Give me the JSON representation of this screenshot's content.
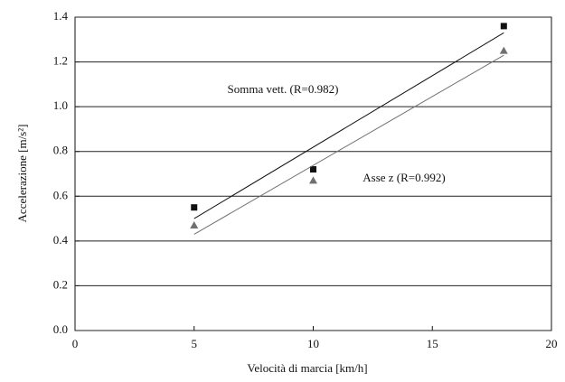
{
  "chart_data": {
    "type": "scatter",
    "xlabel": "Velocità di marcia [km/h]",
    "ylabel": "Accelerazione [m/s²]",
    "xlim": [
      0,
      20
    ],
    "xticks": [
      0,
      5,
      10,
      15,
      20
    ],
    "ylim": [
      0,
      1.4
    ],
    "yticks": [
      {
        "value": 0,
        "label": "0.0"
      },
      0.2,
      0.4,
      0.6,
      0.8,
      {
        "value": 1,
        "label": "1.0"
      },
      1.2,
      1.4
    ],
    "grid": true,
    "series": [
      {
        "name": "Somma vett. (R=0.982)",
        "color": "#111111",
        "marker": "square",
        "x": [
          5,
          10,
          18
        ],
        "values": [
          0.55,
          0.72,
          1.36
        ],
        "fit": {
          "x": [
            5,
            18
          ],
          "values": [
            0.5,
            1.33
          ]
        }
      },
      {
        "name": "Asse z (R=0.992)",
        "color": "#707070",
        "marker": "triangle",
        "x": [
          5,
          10,
          18
        ],
        "values": [
          0.47,
          0.67,
          1.25
        ],
        "fit": {
          "x": [
            5,
            18
          ],
          "values": [
            0.43,
            1.23
          ]
        }
      }
    ]
  }
}
